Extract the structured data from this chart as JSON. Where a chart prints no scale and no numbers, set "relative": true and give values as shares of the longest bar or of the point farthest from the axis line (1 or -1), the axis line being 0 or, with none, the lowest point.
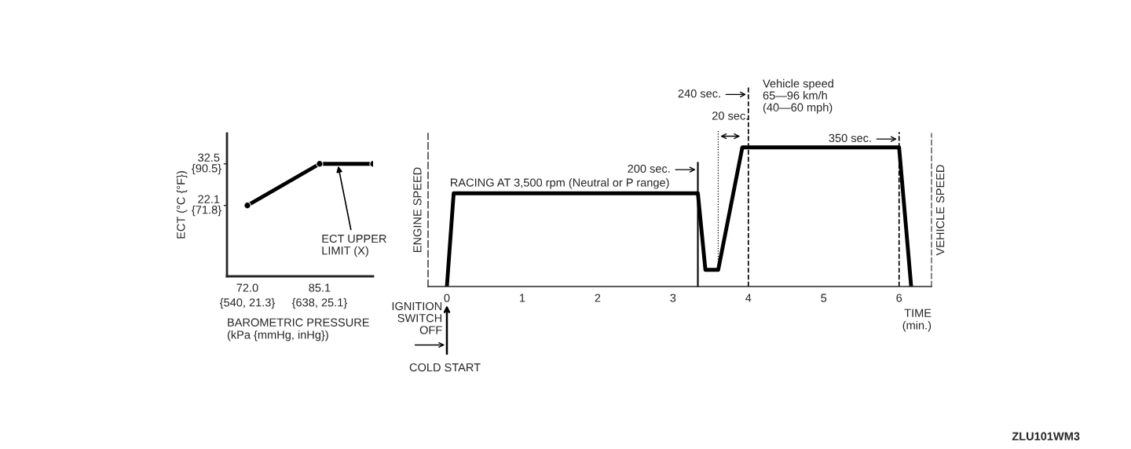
{
  "chart_data": [
    {
      "type": "line",
      "xlabel": "BAROMETRIC PRESSURE\n(kPa {mmHg, inHg})",
      "y2label": "ECT (°C {°F})",
      "x": [
        72.0,
        85.1,
        94.8
      ],
      "values": [
        22.1,
        32.5,
        32.5
      ],
      "color": "#000000",
      "marker": "circle",
      "xlim": [
        68.3,
        94.8
      ],
      "ylim": [
        4.4,
        40.1
      ],
      "xticks": [
        {
          "value": 72.0,
          "label": "72.0"
        },
        85.1
      ],
      "yticks": [
        22.1,
        32.5
      ],
      "y2lim": [
        39.9,
        104.2
      ],
      "y2ticks": [
        {
          "value": 71.8,
          "label": "{71.8}"
        },
        {
          "value": 90.5,
          "label": "{90.5}"
        }
      ],
      "annotations": [
        {
          "text": "ECT UPPER\nLIMIT (X)",
          "x": 88.4,
          "y": 32.5
        },
        "{540, 21.3}",
        "{638, 25.1}"
      ]
    },
    {
      "type": "line",
      "relative": true,
      "xlabel": "TIME\n(min.)",
      "ylabel": "ENGINE SPEED",
      "y2label": "VEHICLE SPEED",
      "x": [
        0,
        0.09,
        3.33,
        3.43,
        3.6,
        3.92,
        6.0,
        6.16
      ],
      "values": [
        0,
        0.67,
        0.67,
        0.12,
        0.12,
        1.0,
        1.0,
        0
      ],
      "color": "#000000",
      "xlim": [
        -0.25,
        6.43
      ],
      "xticks": [
        0,
        1,
        2,
        3,
        4,
        5,
        6
      ],
      "ref_lines": [
        {
          "axis": "x",
          "value": 3.33,
          "label": "200 sec."
        },
        {
          "axis": "x",
          "value": 3.6,
          "label": "20 sec.",
          "line_style": "dotted"
        },
        {
          "axis": "x",
          "value": 4.0,
          "label": "240 sec."
        },
        {
          "axis": "x",
          "value": 6.0,
          "label": "350 sec."
        }
      ],
      "annotations": [
        "RACING AT 3,500 rpm (Neutral or P range)",
        "Vehicle speed\n65—96 km/h\n(40—60 mph)",
        "IGNITION\nSWITCH\nOFF",
        "COLD START",
        "ZLU101WM3"
      ]
    }
  ]
}
